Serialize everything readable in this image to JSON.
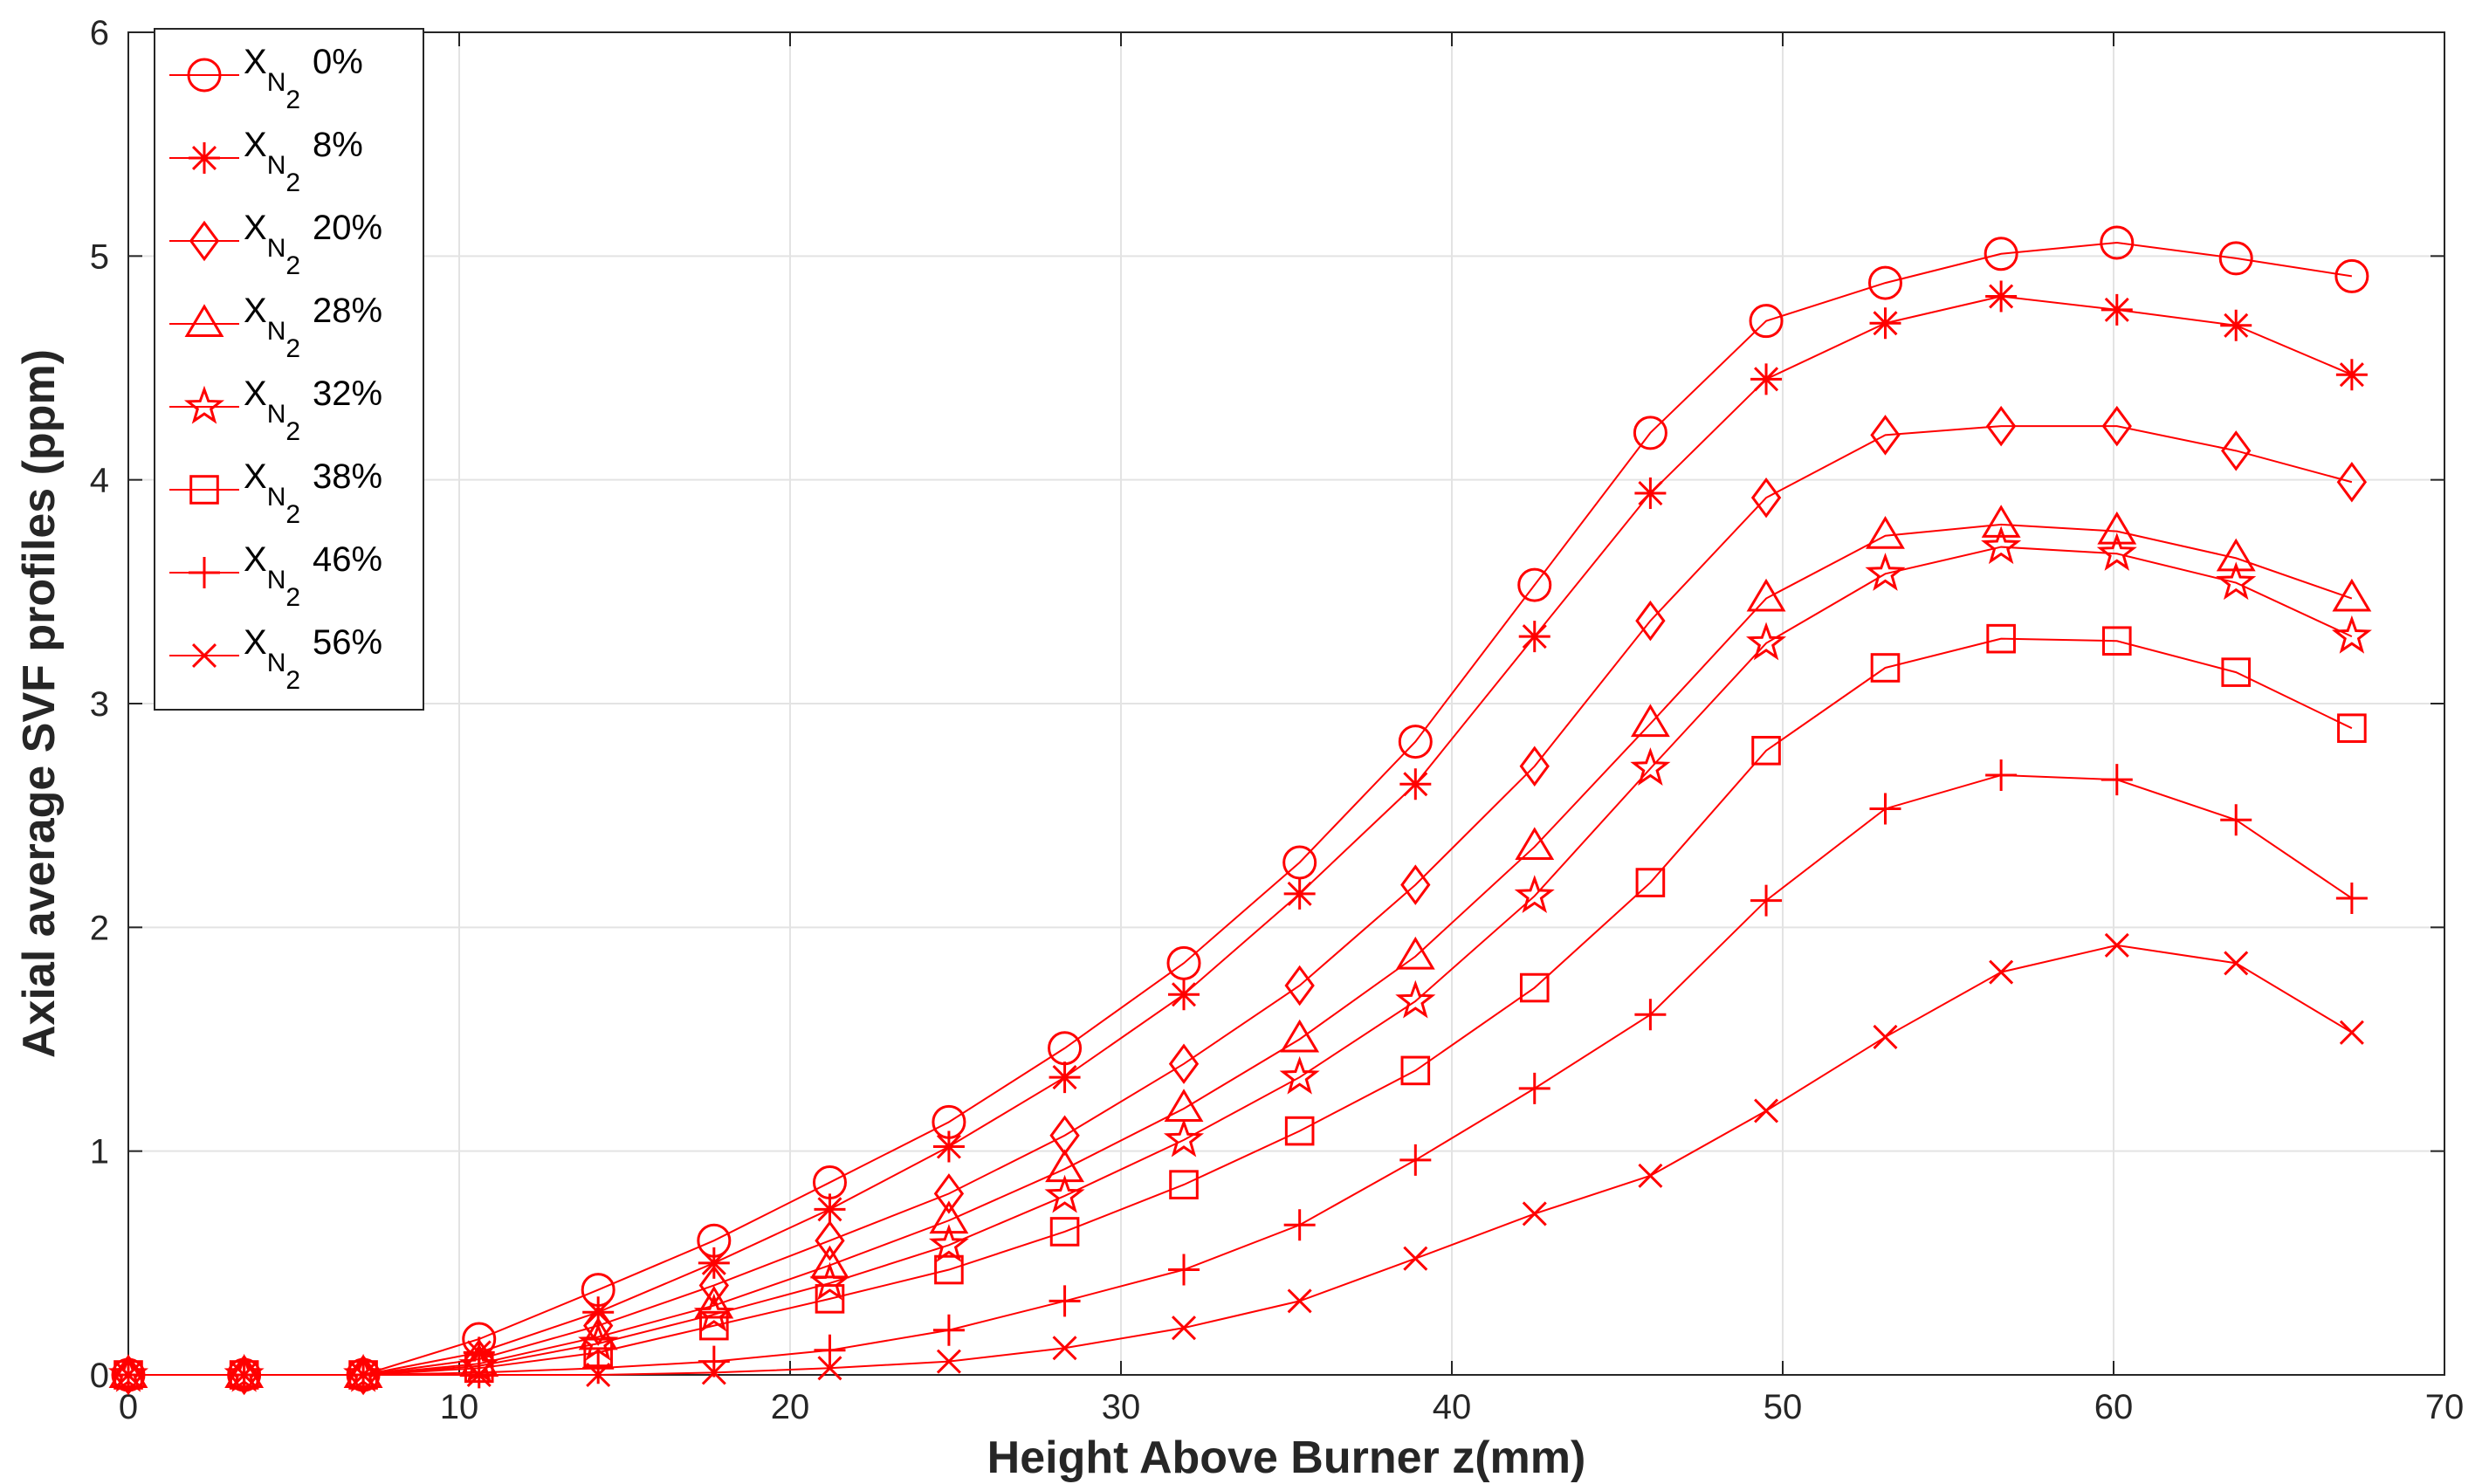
{
  "chart_data": {
    "type": "line",
    "xlabel": "Height Above Burner z(mm)",
    "ylabel": "Axial average SVF profiles (ppm)",
    "xlim": [
      0,
      70
    ],
    "ylim": [
      0,
      6
    ],
    "xticks": [
      0,
      10,
      20,
      30,
      40,
      50,
      60,
      70
    ],
    "yticks": [
      0,
      1,
      2,
      3,
      4,
      5,
      6
    ],
    "grid": true,
    "legend_position": "top-left",
    "color": "#ff0000",
    "x": [
      0,
      3.5,
      7.1,
      10.6,
      14.2,
      17.7,
      21.2,
      24.8,
      28.3,
      31.9,
      35.4,
      38.9,
      42.5,
      46.0,
      49.5,
      53.1,
      56.6,
      60.1,
      63.7,
      67.2
    ],
    "series": [
      {
        "legend_x": "X",
        "legend_sub1": "N",
        "legend_sub2": "2",
        "legend_pct": "0%",
        "marker": "circle",
        "values": [
          0,
          0,
          0,
          0.16,
          0.38,
          0.6,
          0.86,
          1.13,
          1.46,
          1.84,
          2.29,
          2.83,
          3.53,
          4.21,
          4.71,
          4.88,
          5.01,
          5.06,
          4.99,
          4.91
        ]
      },
      {
        "legend_x": "X",
        "legend_sub1": "N",
        "legend_sub2": "2",
        "legend_pct": "8%",
        "marker": "asterisk",
        "values": [
          0,
          0,
          0,
          0.1,
          0.28,
          0.5,
          0.74,
          1.02,
          1.33,
          1.7,
          2.15,
          2.64,
          3.3,
          3.94,
          4.45,
          4.7,
          4.82,
          4.76,
          4.69,
          4.47
        ]
      },
      {
        "legend_x": "X",
        "legend_sub1": "N",
        "legend_sub2": "2",
        "legend_pct": "20%",
        "marker": "diamond",
        "values": [
          0,
          0,
          0,
          0.07,
          0.22,
          0.4,
          0.6,
          0.81,
          1.07,
          1.39,
          1.74,
          2.19,
          2.72,
          3.37,
          3.92,
          4.2,
          4.24,
          4.24,
          4.13,
          3.99
        ]
      },
      {
        "legend_x": "X",
        "legend_sub1": "N",
        "legend_sub2": "2",
        "legend_pct": "28%",
        "marker": "triangle",
        "values": [
          0,
          0,
          0,
          0.05,
          0.17,
          0.31,
          0.49,
          0.69,
          0.92,
          1.19,
          1.5,
          1.87,
          2.36,
          2.91,
          3.47,
          3.75,
          3.8,
          3.77,
          3.65,
          3.47
        ]
      },
      {
        "legend_x": "X",
        "legend_sub1": "N",
        "legend_sub2": "2",
        "legend_pct": "32%",
        "marker": "pentagram",
        "values": [
          0,
          0,
          0,
          0.04,
          0.14,
          0.27,
          0.41,
          0.58,
          0.8,
          1.05,
          1.33,
          1.67,
          2.14,
          2.71,
          3.27,
          3.58,
          3.7,
          3.67,
          3.54,
          3.3
        ]
      },
      {
        "legend_x": "X",
        "legend_sub1": "N",
        "legend_sub2": "2",
        "legend_pct": "38%",
        "marker": "square",
        "values": [
          0,
          0,
          0,
          0.03,
          0.1,
          0.22,
          0.34,
          0.47,
          0.64,
          0.85,
          1.09,
          1.36,
          1.73,
          2.2,
          2.79,
          3.16,
          3.29,
          3.28,
          3.14,
          2.89
        ]
      },
      {
        "legend_x": "X",
        "legend_sub1": "N",
        "legend_sub2": "2",
        "legend_pct": "46%",
        "marker": "plus",
        "values": [
          0,
          0,
          0,
          0.01,
          0.03,
          0.06,
          0.11,
          0.2,
          0.33,
          0.47,
          0.67,
          0.96,
          1.28,
          1.61,
          2.12,
          2.53,
          2.68,
          2.66,
          2.48,
          2.13
        ]
      },
      {
        "legend_x": "X",
        "legend_sub1": "N",
        "legend_sub2": "2",
        "legend_pct": "56%",
        "marker": "x",
        "values": [
          0,
          0,
          0,
          0,
          0,
          0.01,
          0.03,
          0.06,
          0.12,
          0.21,
          0.33,
          0.52,
          0.72,
          0.89,
          1.18,
          1.51,
          1.8,
          1.92,
          1.84,
          1.53
        ]
      }
    ]
  }
}
